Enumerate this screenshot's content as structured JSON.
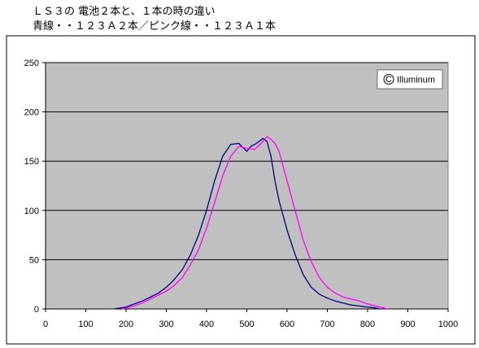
{
  "header": {
    "line1": "ＬＳ３の 電池２本と、１本の時の違い",
    "line2": "青線・・１２３Ａ２本／ピンク線・・１２３Ａ１本"
  },
  "watermark": {
    "symbol": "C",
    "text": "Illuminum"
  },
  "chart_data": {
    "type": "line",
    "title": "",
    "xlabel": "",
    "ylabel": "",
    "xlim": [
      0,
      1000
    ],
    "ylim": [
      0,
      250
    ],
    "xticks": [
      0,
      100,
      200,
      300,
      400,
      500,
      600,
      700,
      800,
      900,
      1000
    ],
    "yticks": [
      0,
      50,
      100,
      150,
      200,
      250
    ],
    "grid": "horizontal",
    "plot_background": "#c0c0c0",
    "series": [
      {
        "color": "#000080",
        "x": [
          170,
          200,
          220,
          240,
          260,
          280,
          300,
          320,
          340,
          360,
          380,
          400,
          420,
          440,
          460,
          480,
          500,
          510,
          520,
          530,
          540,
          550,
          560,
          570,
          580,
          600,
          620,
          640,
          660,
          680,
          700,
          720,
          740,
          760,
          780,
          800,
          820,
          830
        ],
        "y": [
          0,
          2,
          5,
          8,
          12,
          16,
          22,
          30,
          40,
          55,
          75,
          100,
          130,
          155,
          167,
          168,
          160,
          165,
          167,
          170,
          173,
          170,
          155,
          130,
          110,
          80,
          55,
          35,
          22,
          15,
          11,
          8,
          6,
          4,
          3,
          2,
          1,
          0
        ]
      },
      {
        "color": "#ff00ff",
        "x": [
          190,
          220,
          240,
          260,
          280,
          300,
          320,
          340,
          360,
          380,
          400,
          420,
          440,
          460,
          480,
          500,
          520,
          540,
          550,
          560,
          570,
          580,
          600,
          620,
          640,
          660,
          680,
          700,
          720,
          740,
          760,
          780,
          800,
          820,
          840,
          850
        ],
        "y": [
          0,
          3,
          6,
          10,
          14,
          18,
          24,
          32,
          45,
          60,
          82,
          108,
          135,
          155,
          165,
          163,
          162,
          170,
          175,
          172,
          168,
          160,
          130,
          100,
          70,
          48,
          32,
          22,
          16,
          12,
          10,
          8,
          5,
          3,
          1,
          0
        ]
      }
    ]
  }
}
